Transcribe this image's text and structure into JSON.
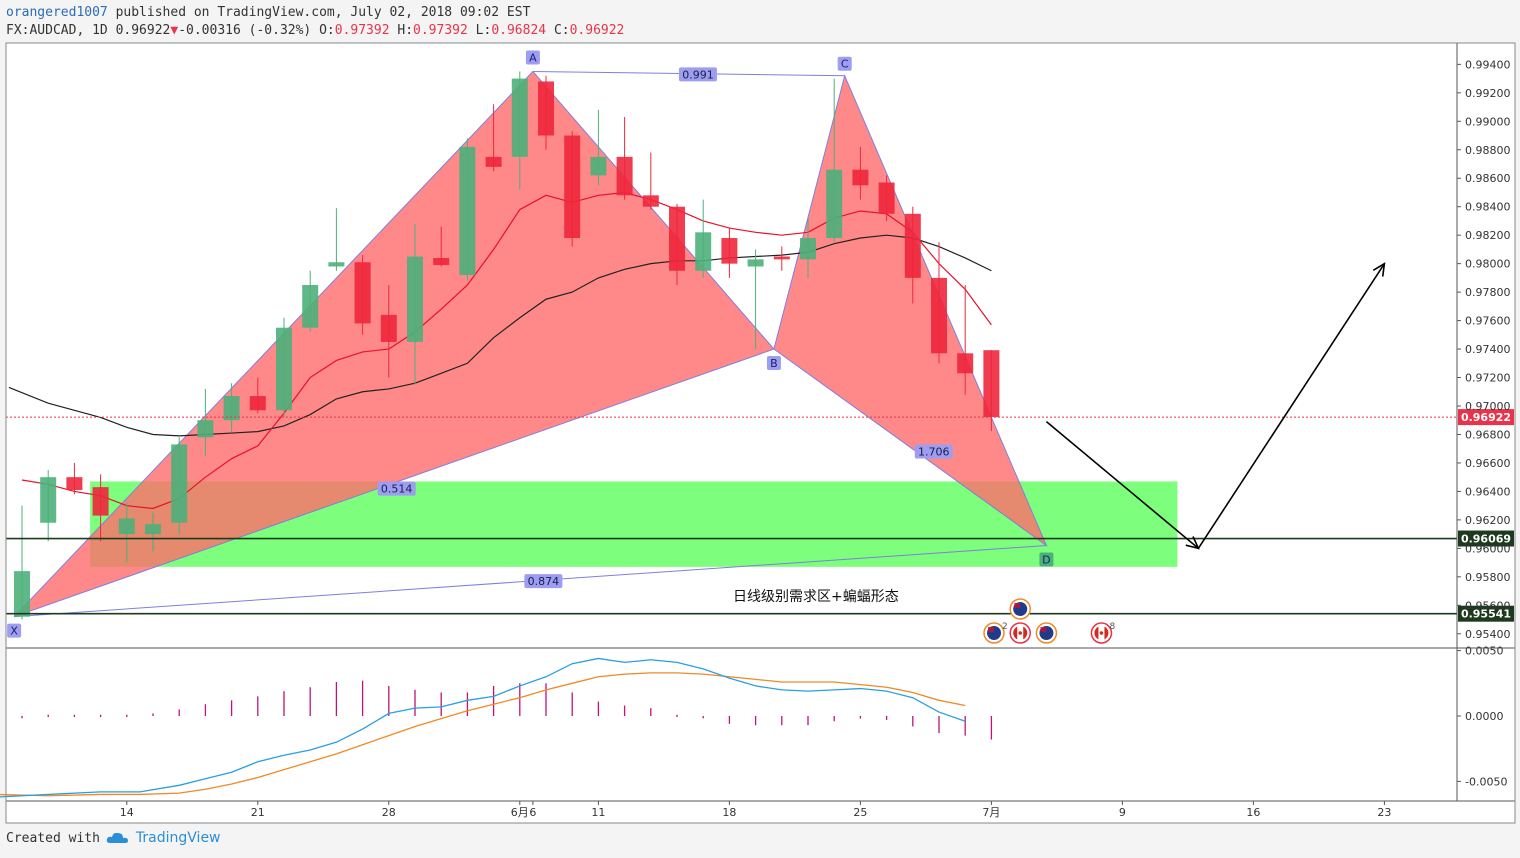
{
  "header": {
    "user": "orangered1007",
    "published": "published on TradingView.com, July 02, 2018 09:02 EST",
    "symbol": "FX:AUDCAD, 1D",
    "last": "0.96922",
    "arrow": "▼",
    "change": "-0.00316 (-0.32%)",
    "o_label": "O:",
    "o": "0.97392",
    "h_label": "H:",
    "h": "0.97392",
    "l_label": "L:",
    "l": "0.96824",
    "c_label": "C:",
    "c": "0.96922"
  },
  "footer": {
    "created": "Created with",
    "brand": "TradingView",
    "icon": "tradingview-cloud-logo"
  },
  "colors": {
    "up": "#4cb07a",
    "down": "#f0263c",
    "pattern_fill": "#ff6b6b",
    "zone": "#66ff66",
    "macd": "#2a9fe0",
    "signal": "#f08a24",
    "ma_red": "#e8102a",
    "ma_black": "#222222",
    "hist": "#c0127a"
  },
  "annotation_text": "日线级别需求区+蝙蝠形态",
  "chart_data": {
    "type": "candlestick",
    "symbol": "FX:AUDCAD",
    "interval": "1D",
    "ylim": [
      0.953,
      0.9955
    ],
    "price_ticks": [
      "0.99400",
      "0.99200",
      "0.99000",
      "0.98800",
      "0.98600",
      "0.98400",
      "0.98200",
      "0.98000",
      "0.97800",
      "0.97600",
      "0.97400",
      "0.97200",
      "0.97000",
      "0.96800",
      "0.96600",
      "0.96400",
      "0.96200",
      "0.96000",
      "0.95800",
      "0.95600",
      "0.95400"
    ],
    "x_ticks": [
      {
        "label": "14",
        "day": 4
      },
      {
        "label": "21",
        "day": 9
      },
      {
        "label": "28",
        "day": 14
      },
      {
        "label": "6月",
        "day": 19
      },
      {
        "label": "6",
        "day": 19.5
      },
      {
        "label": "11",
        "day": 22
      },
      {
        "label": "18",
        "day": 27
      },
      {
        "label": "25",
        "day": 32
      },
      {
        "label": "7月",
        "day": 37
      },
      {
        "label": "9",
        "day": 42
      },
      {
        "label": "16",
        "day": 47
      },
      {
        "label": "23",
        "day": 52
      }
    ],
    "candles": [
      {
        "o": 0.9552,
        "h": 0.963,
        "l": 0.955,
        "c": 0.9584
      },
      {
        "o": 0.9618,
        "h": 0.9655,
        "l": 0.9605,
        "c": 0.965
      },
      {
        "o": 0.965,
        "h": 0.966,
        "l": 0.9638,
        "c": 0.9641
      },
      {
        "o": 0.9643,
        "h": 0.9652,
        "l": 0.9605,
        "c": 0.9623
      },
      {
        "o": 0.961,
        "h": 0.9632,
        "l": 0.959,
        "c": 0.9621
      },
      {
        "o": 0.961,
        "h": 0.9625,
        "l": 0.9598,
        "c": 0.9617
      },
      {
        "o": 0.9618,
        "h": 0.9678,
        "l": 0.961,
        "c": 0.9673
      },
      {
        "o": 0.9678,
        "h": 0.9712,
        "l": 0.9665,
        "c": 0.969
      },
      {
        "o": 0.969,
        "h": 0.9716,
        "l": 0.9682,
        "c": 0.9707
      },
      {
        "o": 0.9707,
        "h": 0.972,
        "l": 0.9695,
        "c": 0.9697
      },
      {
        "o": 0.9697,
        "h": 0.9762,
        "l": 0.9692,
        "c": 0.9755
      },
      {
        "o": 0.9755,
        "h": 0.9795,
        "l": 0.9752,
        "c": 0.9785
      },
      {
        "o": 0.9798,
        "h": 0.9839,
        "l": 0.9795,
        "c": 0.9801
      },
      {
        "o": 0.9801,
        "h": 0.9806,
        "l": 0.975,
        "c": 0.9758
      },
      {
        "o": 0.9764,
        "h": 0.9785,
        "l": 0.972,
        "c": 0.9745
      },
      {
        "o": 0.9745,
        "h": 0.9828,
        "l": 0.9715,
        "c": 0.9805
      },
      {
        "o": 0.9804,
        "h": 0.9826,
        "l": 0.9798,
        "c": 0.9799
      },
      {
        "o": 0.9792,
        "h": 0.9888,
        "l": 0.9788,
        "c": 0.9882
      },
      {
        "o": 0.9875,
        "h": 0.9912,
        "l": 0.9865,
        "c": 0.9868
      },
      {
        "o": 0.9875,
        "h": 0.9935,
        "l": 0.9852,
        "c": 0.993
      },
      {
        "o": 0.9928,
        "h": 0.9932,
        "l": 0.988,
        "c": 0.989
      },
      {
        "o": 0.989,
        "h": 0.9893,
        "l": 0.9812,
        "c": 0.9818
      },
      {
        "o": 0.9862,
        "h": 0.9908,
        "l": 0.9855,
        "c": 0.9875
      },
      {
        "o": 0.9875,
        "h": 0.9903,
        "l": 0.9845,
        "c": 0.9848
      },
      {
        "o": 0.9848,
        "h": 0.9878,
        "l": 0.9838,
        "c": 0.984
      },
      {
        "o": 0.984,
        "h": 0.9842,
        "l": 0.9785,
        "c": 0.9795
      },
      {
        "o": 0.9795,
        "h": 0.9845,
        "l": 0.979,
        "c": 0.9822
      },
      {
        "o": 0.9818,
        "h": 0.9825,
        "l": 0.979,
        "c": 0.98
      },
      {
        "o": 0.9798,
        "h": 0.981,
        "l": 0.974,
        "c": 0.9803
      },
      {
        "o": 0.9805,
        "h": 0.9812,
        "l": 0.9795,
        "c": 0.9803
      },
      {
        "o": 0.9803,
        "h": 0.9832,
        "l": 0.979,
        "c": 0.9818
      },
      {
        "o": 0.9818,
        "h": 0.993,
        "l": 0.9815,
        "c": 0.9866
      },
      {
        "o": 0.9866,
        "h": 0.9882,
        "l": 0.9845,
        "c": 0.9855
      },
      {
        "o": 0.9857,
        "h": 0.9862,
        "l": 0.983,
        "c": 0.9835
      },
      {
        "o": 0.9835,
        "h": 0.984,
        "l": 0.9772,
        "c": 0.979
      },
      {
        "o": 0.979,
        "h": 0.9815,
        "l": 0.973,
        "c": 0.9737
      },
      {
        "o": 0.9737,
        "h": 0.9785,
        "l": 0.9708,
        "c": 0.9723
      },
      {
        "o": 0.97392,
        "h": 0.97392,
        "l": 0.96824,
        "c": 0.96922
      }
    ],
    "ma_fast": [
      [
        0,
        0.9648
      ],
      [
        1,
        0.9645
      ],
      [
        2,
        0.964
      ],
      [
        3,
        0.9637
      ],
      [
        4,
        0.963
      ],
      [
        5,
        0.9628
      ],
      [
        6,
        0.9635
      ],
      [
        7,
        0.965
      ],
      [
        8,
        0.9663
      ],
      [
        9,
        0.9672
      ],
      [
        10,
        0.9695
      ],
      [
        11,
        0.972
      ],
      [
        12,
        0.9732
      ],
      [
        13,
        0.9738
      ],
      [
        14,
        0.974
      ],
      [
        15,
        0.9752
      ],
      [
        16,
        0.9768
      ],
      [
        17,
        0.9785
      ],
      [
        18,
        0.981
      ],
      [
        19,
        0.9838
      ],
      [
        20,
        0.9848
      ],
      [
        21,
        0.9843
      ],
      [
        22,
        0.9848
      ],
      [
        23,
        0.985
      ],
      [
        24,
        0.9845
      ],
      [
        25,
        0.9838
      ],
      [
        26,
        0.983
      ],
      [
        27,
        0.9825
      ],
      [
        28,
        0.9822
      ],
      [
        29,
        0.982
      ],
      [
        30,
        0.9822
      ],
      [
        31,
        0.9832
      ],
      [
        32,
        0.9837
      ],
      [
        33,
        0.9835
      ],
      [
        34,
        0.9822
      ],
      [
        35,
        0.98
      ],
      [
        36,
        0.9782
      ],
      [
        37,
        0.9757
      ]
    ],
    "ma_slow": [
      [
        -0.5,
        0.9713
      ],
      [
        1,
        0.9702
      ],
      [
        2,
        0.9697
      ],
      [
        3,
        0.9692
      ],
      [
        4,
        0.9685
      ],
      [
        5,
        0.968
      ],
      [
        6,
        0.9679
      ],
      [
        7,
        0.968
      ],
      [
        8,
        0.9681
      ],
      [
        9,
        0.9682
      ],
      [
        10,
        0.9686
      ],
      [
        11,
        0.9694
      ],
      [
        12,
        0.9705
      ],
      [
        13,
        0.971
      ],
      [
        14,
        0.9712
      ],
      [
        15,
        0.9716
      ],
      [
        16,
        0.9723
      ],
      [
        17,
        0.973
      ],
      [
        18,
        0.9748
      ],
      [
        19,
        0.9762
      ],
      [
        20,
        0.9775
      ],
      [
        21,
        0.978
      ],
      [
        22,
        0.979
      ],
      [
        23,
        0.9796
      ],
      [
        24,
        0.98
      ],
      [
        25,
        0.9802
      ],
      [
        26,
        0.9802
      ],
      [
        27,
        0.9804
      ],
      [
        28,
        0.9805
      ],
      [
        29,
        0.9806
      ],
      [
        30,
        0.9808
      ],
      [
        31,
        0.9814
      ],
      [
        32,
        0.9818
      ],
      [
        33,
        0.982
      ],
      [
        34,
        0.9818
      ],
      [
        35,
        0.9812
      ],
      [
        36,
        0.9804
      ],
      [
        37,
        0.9795
      ]
    ],
    "harmonic": {
      "name": "bat",
      "points": [
        {
          "label": "X",
          "day": -0.3,
          "y": 0.9552
        },
        {
          "label": "A",
          "day": 19.5,
          "y": 0.9935
        },
        {
          "label": "B",
          "day": 28.7,
          "y": 0.974
        },
        {
          "label": "C",
          "day": 31.4,
          "y": 0.9932
        },
        {
          "label": "D",
          "day": 39.1,
          "y": 0.9602
        }
      ],
      "ratios": [
        {
          "text": "0.514",
          "day": 14.3,
          "y": 0.9642
        },
        {
          "text": "0.991",
          "day": 25.8,
          "y": 0.9933
        },
        {
          "text": "1.706",
          "day": 34.8,
          "y": 0.9668
        },
        {
          "text": "0.874",
          "day": 19.9,
          "y": 0.9577
        }
      ]
    },
    "demand_zone": {
      "day_start": 2.6,
      "day_end": 44.1,
      "y_top": 0.9647,
      "y_bottom": 0.9587
    },
    "levels": [
      {
        "y": 0.96069,
        "label": "0.96069",
        "color": "#1e3a1e"
      },
      {
        "y": 0.95541,
        "label": "0.95541",
        "color": "#1e3a1e"
      },
      {
        "y": 0.96922,
        "label": "0.96922",
        "color": "#e8334a",
        "dotted": true
      }
    ],
    "projection": [
      {
        "day": 39.1,
        "y": 0.9689
      },
      {
        "day": 44.9,
        "y": 0.96
      },
      {
        "day": 52.0,
        "y": 0.98
      }
    ],
    "event_icons": [
      {
        "day": 38.1,
        "row": 0,
        "flag": "au"
      },
      {
        "day": 37.1,
        "row": 1,
        "flag": "au",
        "count": "2"
      },
      {
        "day": 38.1,
        "row": 1,
        "flag": "ca"
      },
      {
        "day": 39.1,
        "row": 1,
        "flag": "au"
      },
      {
        "day": 41.2,
        "row": 1,
        "flag": "ca",
        "count": "8"
      }
    ],
    "macd": {
      "ylim": [
        -0.0065,
        0.0052
      ],
      "ticks": [
        "0.0050",
        "0.0000",
        "-0.0050"
      ],
      "macd_line": [
        [
          -1,
          -0.0062
        ],
        [
          1,
          -0.006
        ],
        [
          3,
          -0.0058
        ],
        [
          4.5,
          -0.0058
        ],
        [
          6,
          -0.0053
        ],
        [
          7,
          -0.0048
        ],
        [
          8,
          -0.0043
        ],
        [
          9,
          -0.0035
        ],
        [
          10,
          -0.003
        ],
        [
          11,
          -0.0026
        ],
        [
          12,
          -0.002
        ],
        [
          13,
          -0.001
        ],
        [
          14,
          0.0002
        ],
        [
          15,
          0.0006
        ],
        [
          16,
          0.0007
        ],
        [
          17,
          0.0012
        ],
        [
          18,
          0.0015
        ],
        [
          19,
          0.0023
        ],
        [
          20,
          0.003
        ],
        [
          21,
          0.004
        ],
        [
          22,
          0.0044
        ],
        [
          23,
          0.0041
        ],
        [
          24,
          0.0043
        ],
        [
          25,
          0.0041
        ],
        [
          26,
          0.0036
        ],
        [
          27,
          0.0029
        ],
        [
          28,
          0.0023
        ],
        [
          29,
          0.002
        ],
        [
          30,
          0.0019
        ],
        [
          31,
          0.002
        ],
        [
          32,
          0.0021
        ],
        [
          33,
          0.0019
        ],
        [
          34,
          0.0014
        ],
        [
          35,
          0.0003
        ],
        [
          36,
          -0.0004
        ]
      ],
      "signal_line": [
        [
          -1,
          -0.006
        ],
        [
          1,
          -0.0061
        ],
        [
          3,
          -0.006
        ],
        [
          4.5,
          -0.006
        ],
        [
          6,
          -0.0059
        ],
        [
          7,
          -0.0056
        ],
        [
          8,
          -0.0052
        ],
        [
          9,
          -0.0047
        ],
        [
          10,
          -0.0041
        ],
        [
          11,
          -0.0035
        ],
        [
          12,
          -0.0029
        ],
        [
          13,
          -0.0022
        ],
        [
          14,
          -0.0015
        ],
        [
          15,
          -0.0008
        ],
        [
          16,
          -0.0002
        ],
        [
          17,
          0.0004
        ],
        [
          18,
          0.0009
        ],
        [
          19,
          0.0014
        ],
        [
          20,
          0.002
        ],
        [
          21,
          0.0025
        ],
        [
          22,
          0.003
        ],
        [
          23,
          0.0032
        ],
        [
          24,
          0.0033
        ],
        [
          25,
          0.0033
        ],
        [
          26,
          0.0032
        ],
        [
          27,
          0.003
        ],
        [
          28,
          0.0028
        ],
        [
          29,
          0.0026
        ],
        [
          30,
          0.0026
        ],
        [
          31,
          0.0026
        ],
        [
          32,
          0.0024
        ],
        [
          33,
          0.0022
        ],
        [
          34,
          0.0018
        ],
        [
          35,
          0.0012
        ],
        [
          36,
          0.0008
        ]
      ],
      "histogram": [
        -0.0001,
        0.0001,
        0.0001,
        0.0001,
        0.0001,
        0.0002,
        0.0005,
        0.0009,
        0.0012,
        0.0015,
        0.0019,
        0.0022,
        0.0026,
        0.0027,
        0.0023,
        0.002,
        0.0018,
        0.0018,
        0.0023,
        0.0025,
        0.0025,
        0.0018,
        0.0011,
        0.0008,
        0.0006,
        0.0001,
        -0.0001,
        -0.0006,
        -0.0007,
        -0.0007,
        -0.0007,
        -0.0004,
        -0.0002,
        -0.0003,
        -0.0008,
        -0.0013,
        -0.0015,
        -0.0018
      ]
    }
  }
}
